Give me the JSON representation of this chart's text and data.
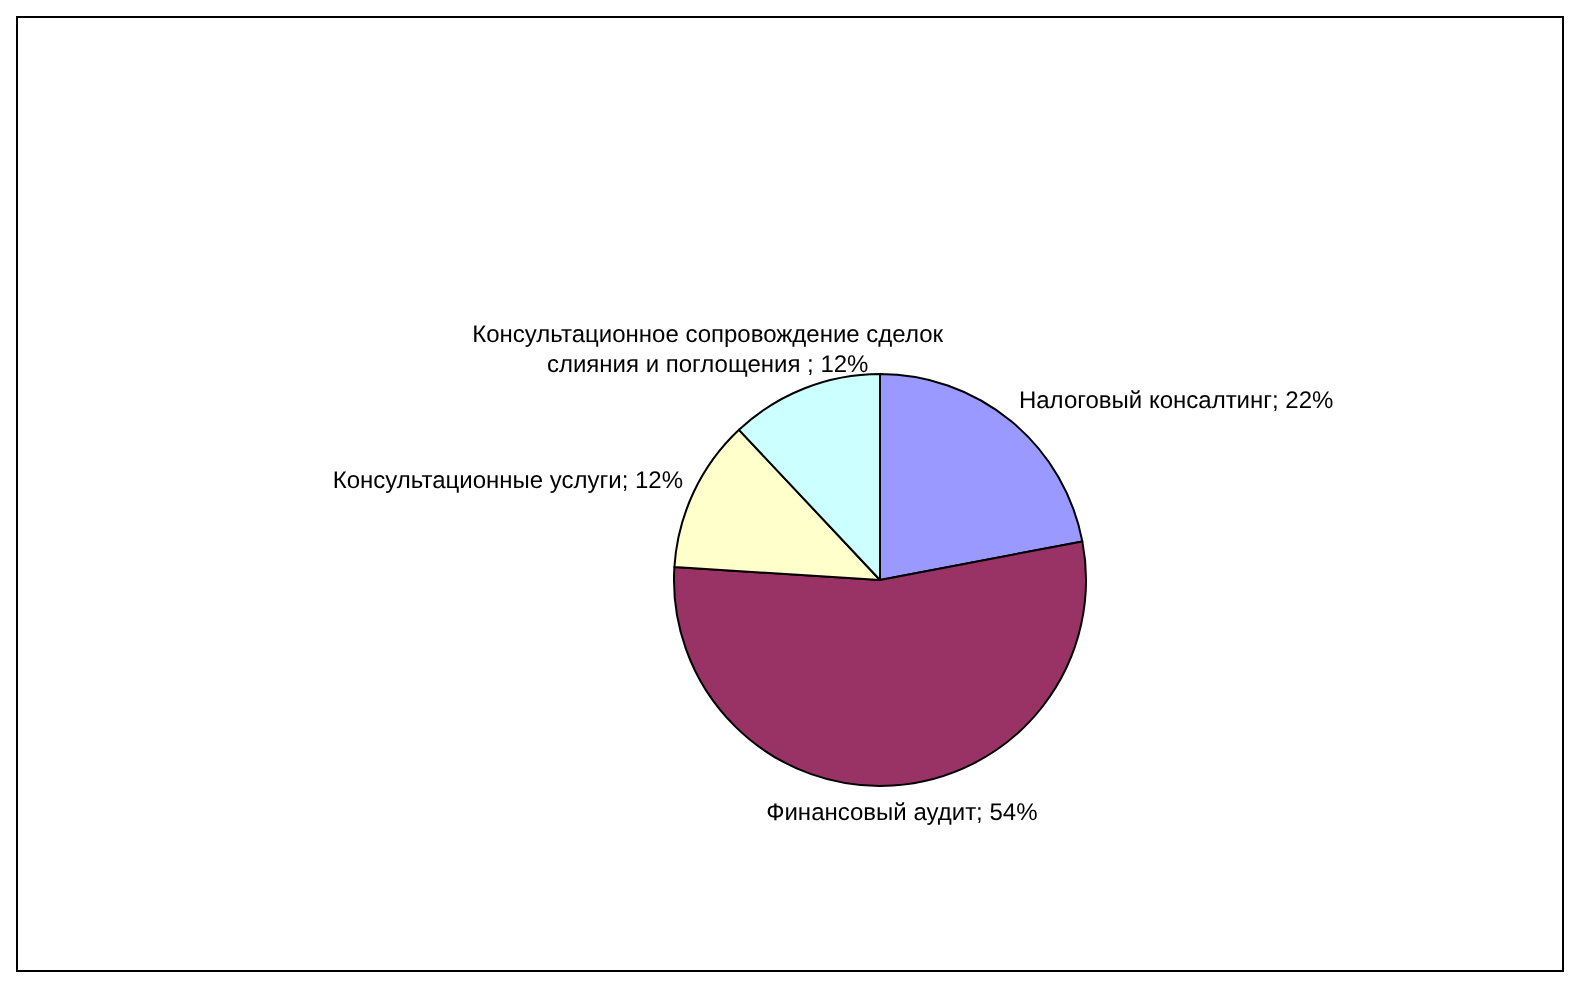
{
  "chart_data": {
    "type": "pie",
    "categories": [
      "Налоговый консалтинг",
      "Финансовый аудит",
      "Консультационные услуги",
      "Консультационное сопровождение сделок слияния и поглощения "
    ],
    "values": [
      22,
      54,
      12,
      12
    ],
    "value_labels": [
      "22%",
      "54%",
      "12%",
      "12%"
    ],
    "colors": [
      "#9999ff",
      "#993366",
      "#ffffcc",
      "#ccffff"
    ],
    "legend": false
  }
}
